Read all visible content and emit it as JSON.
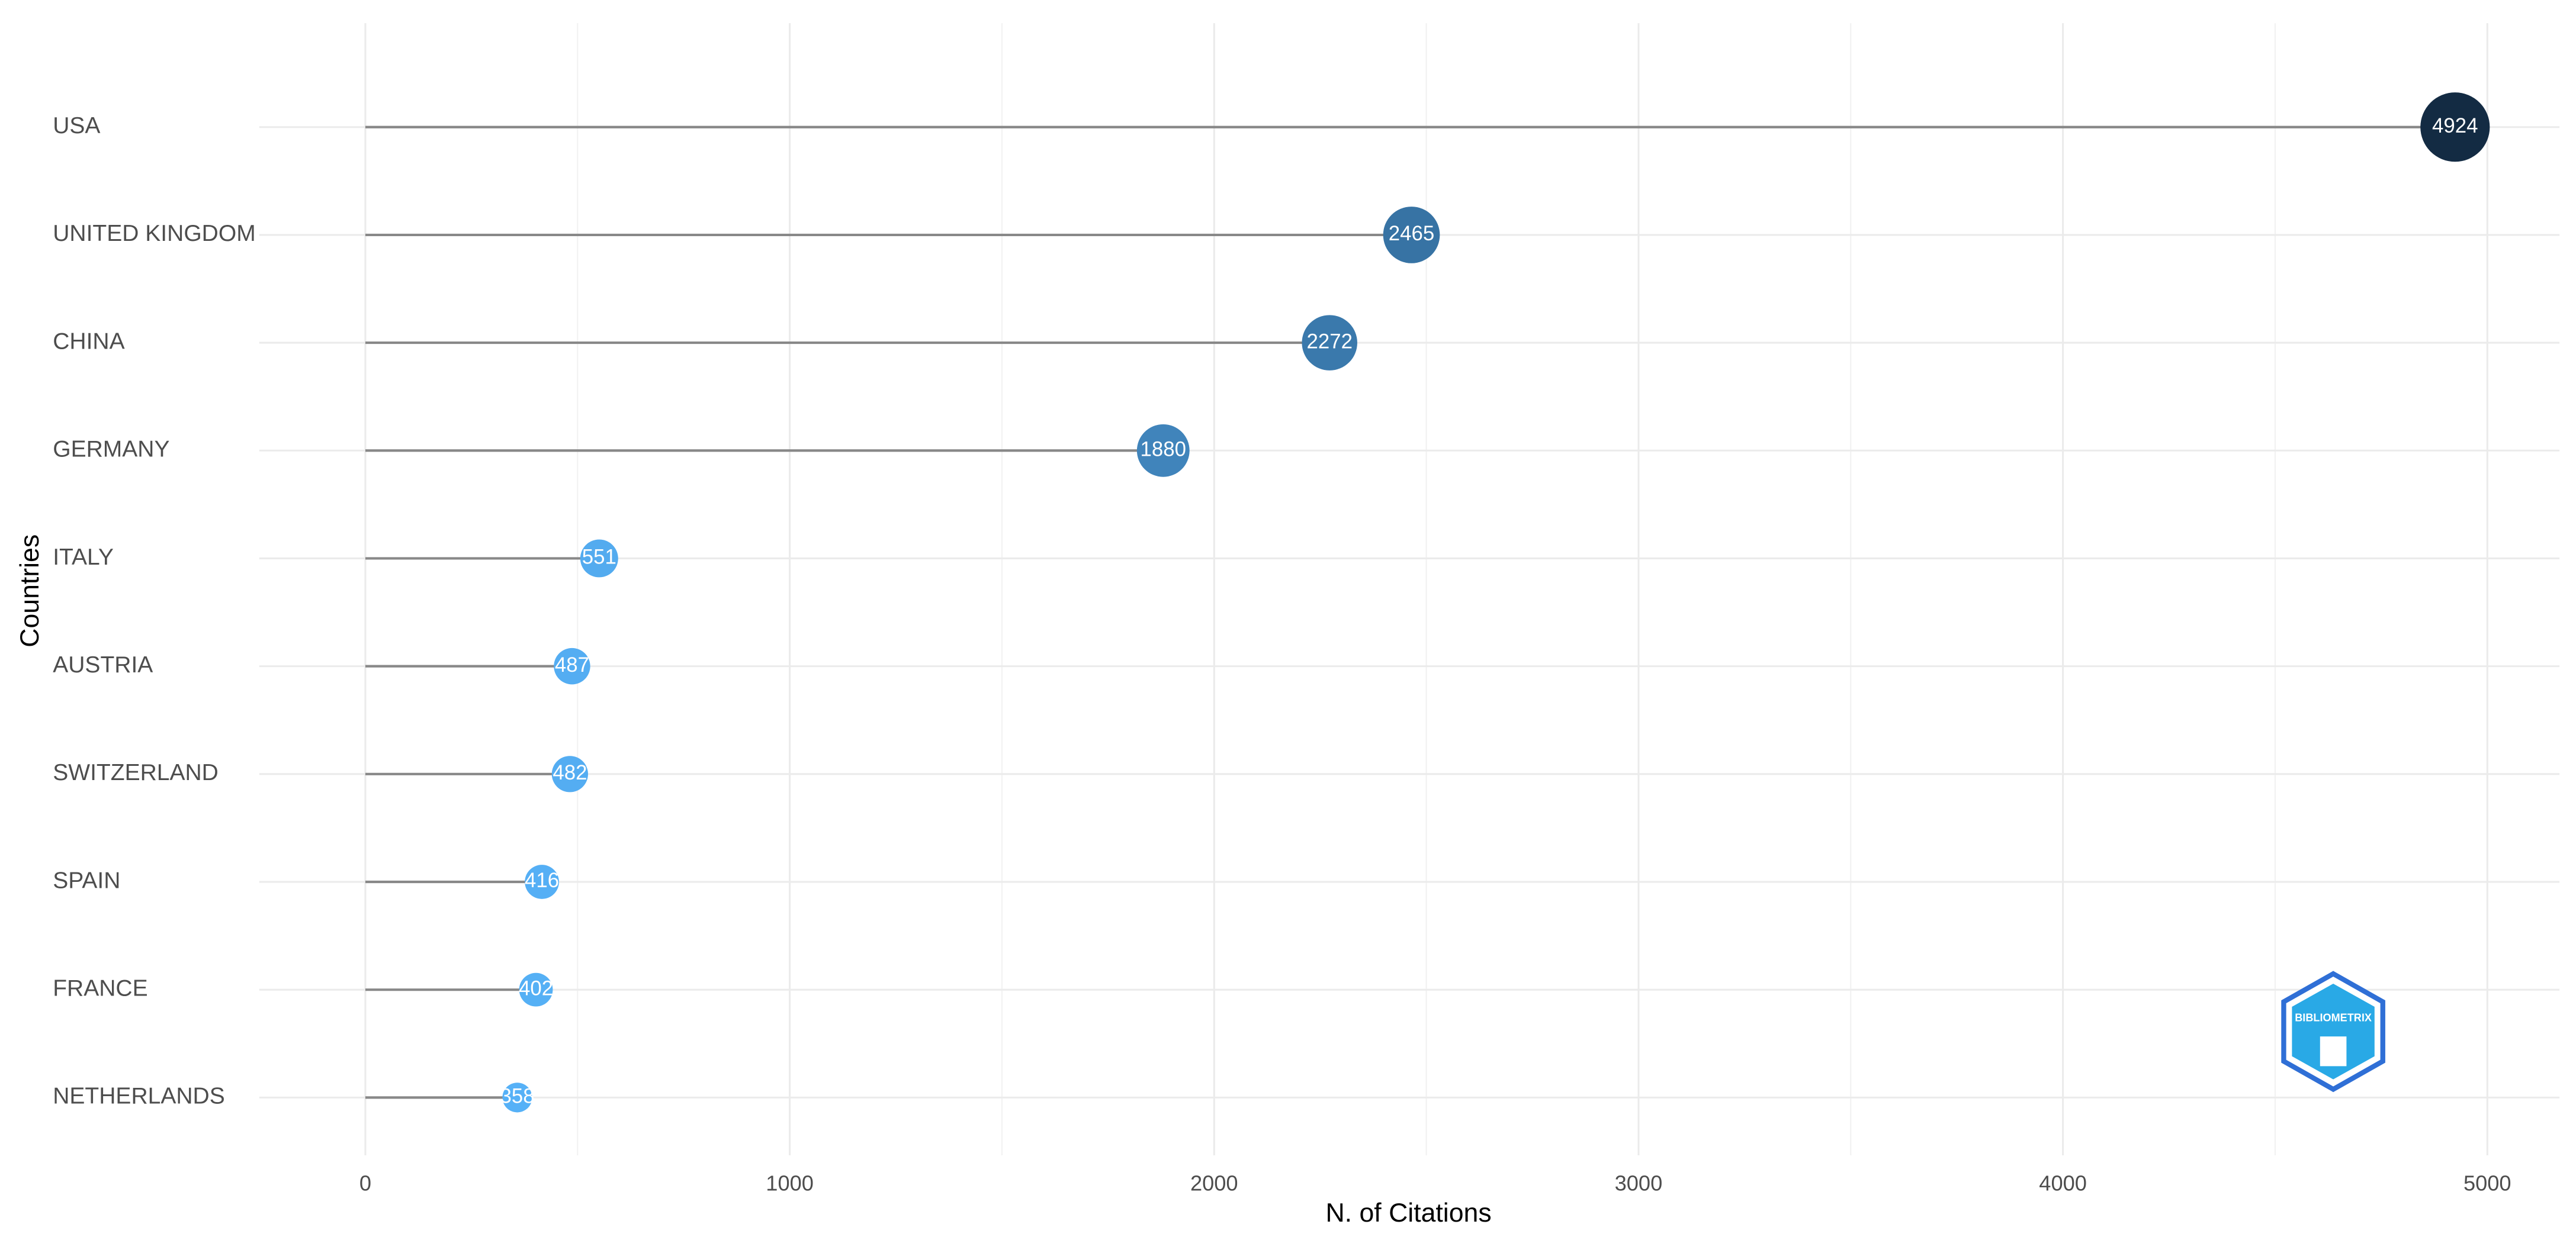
{
  "chart_data": {
    "type": "lollipop",
    "categories": [
      "USA",
      "UNITED KINGDOM",
      "CHINA",
      "GERMANY",
      "ITALY",
      "AUSTRIA",
      "SWITZERLAND",
      "SPAIN",
      "FRANCE",
      "NETHERLANDS"
    ],
    "values": [
      4924,
      2465,
      2272,
      1880,
      551,
      487,
      482,
      416,
      402,
      358
    ],
    "x_label": "N. of Citations",
    "y_label": "Countries",
    "xlim": [
      -250,
      5170
    ],
    "xticks": [
      0,
      1000,
      2000,
      3000,
      4000,
      5000
    ],
    "minor_xticks": [
      500,
      1500,
      2500,
      3500,
      4500
    ],
    "grid": true,
    "stem_color": "#888888",
    "color_low": "#56b1f7",
    "color_high": "#132b43",
    "logo_text": "BIBLIOMETRIX"
  }
}
